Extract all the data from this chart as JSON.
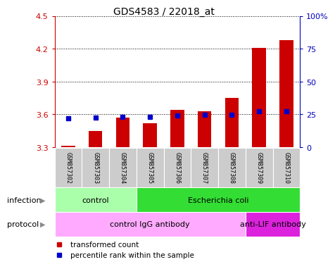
{
  "title": "GDS4583 / 22018_at",
  "samples": [
    "GSM857302",
    "GSM857303",
    "GSM857304",
    "GSM857305",
    "GSM857306",
    "GSM857307",
    "GSM857308",
    "GSM857309",
    "GSM857310"
  ],
  "red_values": [
    3.31,
    3.45,
    3.57,
    3.52,
    3.64,
    3.63,
    3.75,
    4.21,
    4.28
  ],
  "blue_values": [
    3.565,
    3.572,
    3.578,
    3.578,
    3.59,
    3.595,
    3.595,
    3.628,
    3.63
  ],
  "ymin": 3.3,
  "ymax": 4.5,
  "yticks_left": [
    3.3,
    3.6,
    3.9,
    4.2,
    4.5
  ],
  "yticks_right_pct": [
    0,
    25,
    50,
    75,
    100
  ],
  "yticks_right_label": [
    "0",
    "25",
    "50",
    "75",
    "100%"
  ],
  "infection_groups": [
    {
      "label": "control",
      "start": 0,
      "end": 3,
      "color": "#AAFFAA"
    },
    {
      "label": "Escherichia coli",
      "start": 3,
      "end": 9,
      "color": "#33DD33"
    }
  ],
  "protocol_groups": [
    {
      "label": "control IgG antibody",
      "start": 0,
      "end": 7,
      "color": "#FFAAFF"
    },
    {
      "label": "anti-LIF antibody",
      "start": 7,
      "end": 9,
      "color": "#DD22DD"
    }
  ],
  "bar_color": "#CC0000",
  "blue_color": "#0000CC",
  "grid_color": "#000000",
  "left_axis_color": "#CC0000",
  "right_axis_color": "#0000BB",
  "sample_box_color": "#CCCCCC",
  "legend_red_label": "transformed count",
  "legend_blue_label": "percentile rank within the sample",
  "bar_width": 0.5
}
